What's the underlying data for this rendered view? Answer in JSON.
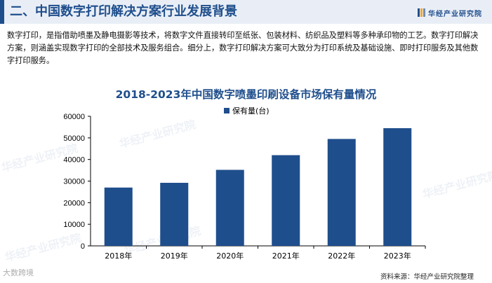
{
  "header": {
    "title": "二、中国数字打印解决方案行业发展背景",
    "logo_text": "华经产业研究院"
  },
  "intro": "数字打印，是指借助喷墨及静电摄影等技术，将数字文件直接转印至纸张、包装材料、纺织品及塑料等多种承印物的工艺。数字打印解决方案，则涵盖实现数字打印的全部技术及服务组合。细分上，数字打印解决方案可大致分为打印系统及基础设施、即时打印服务及其他数字打印服务。",
  "watermarks": [
    "华经产业研究院",
    "华经产业研究院",
    "华经产业研究院",
    "华经产业研究院",
    "华经产业研究院"
  ],
  "bottom_watermark": "大数跨境",
  "source": "资料来源：华经产业研究院整理",
  "colors": {
    "bar": "#1f4e8c",
    "title": "#1f4e8c",
    "axis": "#000000"
  },
  "chart_data": {
    "type": "bar",
    "title": "2018-2023年中国数字喷墨印刷设备市场保有量情况",
    "categories": [
      "2018年",
      "2019年",
      "2020年",
      "2021年",
      "2022年",
      "2023年"
    ],
    "series": [
      {
        "name": "保有量(台)",
        "values": [
          27000,
          29200,
          35200,
          42000,
          49500,
          54500
        ]
      }
    ],
    "ylim": [
      0,
      60000
    ],
    "yticks": [
      0,
      10000,
      20000,
      30000,
      40000,
      50000,
      60000
    ],
    "legend": "top-right",
    "grid": false
  }
}
